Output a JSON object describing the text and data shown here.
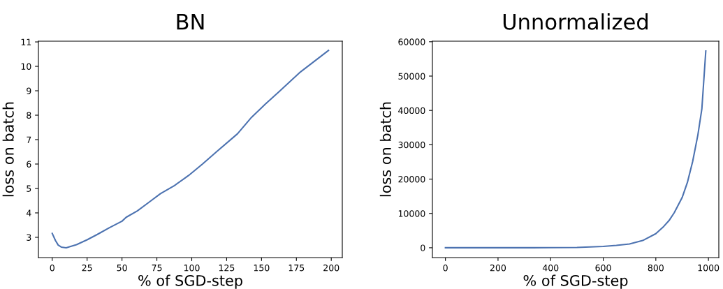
{
  "chart_data": [
    {
      "type": "line",
      "title": "BN",
      "xlabel": "% of SGD-step",
      "ylabel": "loss on batch",
      "xlim": [
        -9.9,
        207.9
      ],
      "ylim": [
        2.17,
        11.03
      ],
      "xticks": [
        0,
        25,
        50,
        75,
        100,
        125,
        150,
        175,
        200
      ],
      "yticks": [
        3,
        4,
        5,
        6,
        7,
        8,
        9,
        10,
        11
      ],
      "grid": false,
      "legend": false,
      "series": [
        {
          "color": "#4c72b0",
          "x": [
            0,
            2.3,
            4.3,
            6.5,
            10,
            12.4,
            17.4,
            25,
            32.4,
            40.8,
            50,
            53,
            61,
            69,
            77.6,
            87.6,
            97.7,
            107.7,
            117.7,
            132.8,
            142.8,
            152.8,
            162.9,
            177.9,
            198
          ],
          "values": [
            3.16,
            2.87,
            2.68,
            2.6,
            2.57,
            2.61,
            2.7,
            2.9,
            3.12,
            3.39,
            3.66,
            3.82,
            4.08,
            4.42,
            4.79,
            5.12,
            5.53,
            6.0,
            6.5,
            7.24,
            7.91,
            8.46,
            8.98,
            9.77,
            10.65
          ]
        }
      ]
    },
    {
      "type": "line",
      "title": "Unnormalized",
      "xlabel": "% of SGD-step",
      "ylabel": "loss on batch",
      "xlim": [
        -49.5,
        1039.5
      ],
      "ylim": [
        -2865,
        60165
      ],
      "xticks": [
        0,
        200,
        400,
        600,
        800,
        1000
      ],
      "yticks": [
        0,
        10000,
        20000,
        30000,
        40000,
        50000,
        60000
      ],
      "grid": false,
      "legend": false,
      "series": [
        {
          "color": "#4c72b0",
          "x": [
            0,
            200,
            400,
            500,
            600,
            650,
            700,
            750,
            800,
            830,
            850,
            870,
            900,
            920,
            940,
            960,
            975,
            990
          ],
          "values": [
            0,
            0,
            20,
            80,
            400,
            700,
            1100,
            2100,
            4100,
            6200,
            7900,
            10200,
            14600,
            19000,
            25100,
            32900,
            40400,
            57300
          ]
        }
      ]
    }
  ]
}
